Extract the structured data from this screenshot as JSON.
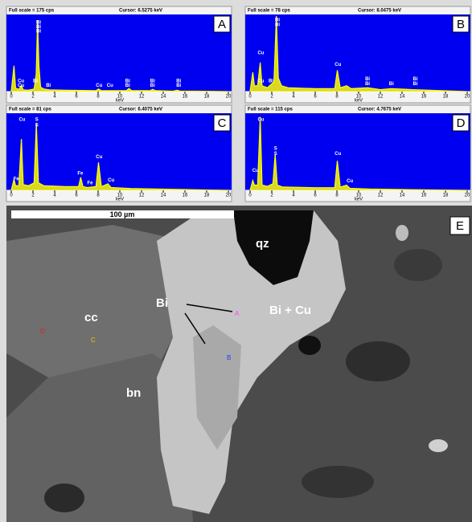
{
  "chart_data": [
    {
      "type": "line",
      "title": "Full scale = 175 cps",
      "subtitle": "Cursor: 6.5275 keV",
      "panel": "A",
      "x_label": "keV",
      "xlim": [
        0,
        20
      ],
      "xticks": [
        0,
        2,
        4,
        6,
        8,
        10,
        12,
        14,
        16,
        18,
        20
      ],
      "ylim": [
        0,
        175
      ],
      "color": "#ffff00",
      "background": "#0000f0",
      "x": [
        0,
        0.25,
        0.4,
        0.7,
        0.93,
        1.1,
        1.5,
        2.1,
        2.3,
        2.42,
        2.55,
        2.7,
        3.0,
        3.5,
        5,
        7.8,
        8.04,
        8.3,
        9,
        10.6,
        10.84,
        11.1,
        12.8,
        13.02,
        13.3,
        14.9,
        15.25,
        15.6,
        17,
        20
      ],
      "values": [
        0,
        60,
        8,
        5,
        14,
        4,
        3,
        6,
        40,
        165,
        60,
        10,
        6,
        4,
        3,
        2,
        6,
        2,
        2,
        2,
        7,
        2,
        2,
        5,
        2,
        1,
        3,
        1,
        1,
        0
      ],
      "annotations": [
        {
          "text": "Bi",
          "x": 2.3,
          "y": 160
        },
        {
          "text": "Bi",
          "x": 2.3,
          "y": 150
        },
        {
          "text": "Bi",
          "x": 2.3,
          "y": 140
        },
        {
          "text": "Cu",
          "x": 0.6,
          "y": 24
        },
        {
          "text": "Cu",
          "x": 0.6,
          "y": 14
        },
        {
          "text": "Bi",
          "x": 2.0,
          "y": 24
        },
        {
          "text": "Bi",
          "x": 3.2,
          "y": 14
        },
        {
          "text": "Cu",
          "x": 7.8,
          "y": 14
        },
        {
          "text": "Cu",
          "x": 8.8,
          "y": 14
        },
        {
          "text": "Bi",
          "x": 10.5,
          "y": 24
        },
        {
          "text": "Bi",
          "x": 10.5,
          "y": 14
        },
        {
          "text": "Bi",
          "x": 12.8,
          "y": 24
        },
        {
          "text": "Bi",
          "x": 12.8,
          "y": 14
        },
        {
          "text": "Bi",
          "x": 15.2,
          "y": 24
        },
        {
          "text": "Bi",
          "x": 15.2,
          "y": 14
        }
      ]
    },
    {
      "type": "line",
      "title": "Full scale = 78 cps",
      "subtitle": "Cursor: 8.0475 keV",
      "panel": "B",
      "x_label": "keV",
      "xlim": [
        0,
        20
      ],
      "xticks": [
        0,
        2,
        4,
        6,
        8,
        10,
        12,
        14,
        16,
        18,
        20
      ],
      "ylim": [
        0,
        78
      ],
      "color": "#ffff00",
      "background": "#0000f0",
      "x": [
        0,
        0.25,
        0.4,
        0.7,
        0.93,
        1.1,
        1.6,
        2.2,
        2.42,
        2.6,
        2.9,
        3.5,
        6,
        7.8,
        8.04,
        8.3,
        8.9,
        9.3,
        10.84,
        12,
        13.02,
        15,
        20
      ],
      "values": [
        0,
        20,
        6,
        6,
        30,
        6,
        4,
        10,
        78,
        14,
        6,
        4,
        3,
        3,
        22,
        4,
        6,
        3,
        4,
        2,
        3,
        2,
        0
      ],
      "annotations": [
        {
          "text": "Bi",
          "x": 2.3,
          "y": 74
        },
        {
          "text": "Bi",
          "x": 2.3,
          "y": 69
        },
        {
          "text": "Cu",
          "x": 0.7,
          "y": 40
        },
        {
          "text": "Cu",
          "x": 0.7,
          "y": 11
        },
        {
          "text": "Bi",
          "x": 1.7,
          "y": 11
        },
        {
          "text": "Cu",
          "x": 7.8,
          "y": 28
        },
        {
          "text": "Bi",
          "x": 10.6,
          "y": 13
        },
        {
          "text": "Bi",
          "x": 10.6,
          "y": 8
        },
        {
          "text": "Bi",
          "x": 12.8,
          "y": 8
        },
        {
          "text": "Bi",
          "x": 15,
          "y": 13
        },
        {
          "text": "Bi",
          "x": 15,
          "y": 8
        }
      ]
    },
    {
      "type": "line",
      "title": "Full scale = 81 cps",
      "subtitle": "Cursor: 6.4075 keV",
      "panel": "C",
      "x_label": "keV",
      "xlim": [
        0,
        20
      ],
      "xticks": [
        0,
        2,
        4,
        6,
        8,
        10,
        12,
        14,
        16,
        18,
        20
      ],
      "ylim": [
        0,
        81
      ],
      "color": "#ffff00",
      "background": "#0000f0",
      "x": [
        0,
        0.25,
        0.4,
        0.7,
        0.93,
        1.1,
        1.6,
        2.1,
        2.31,
        2.5,
        3,
        5,
        6.2,
        6.4,
        6.6,
        7,
        7.8,
        8.04,
        8.3,
        8.9,
        9.2,
        11,
        20
      ],
      "values": [
        0,
        12,
        5,
        5,
        55,
        6,
        5,
        8,
        72,
        8,
        5,
        4,
        4,
        14,
        4,
        3,
        4,
        30,
        4,
        7,
        3,
        2,
        0
      ],
      "annotations": [
        {
          "text": "Cu",
          "x": 0.7,
          "y": 76
        },
        {
          "text": "S",
          "x": 2.2,
          "y": 76
        },
        {
          "text": "S",
          "x": 2.2,
          "y": 70
        },
        {
          "text": "Fe",
          "x": 0.2,
          "y": 12
        },
        {
          "text": "Fe",
          "x": 6.1,
          "y": 18
        },
        {
          "text": "Fe",
          "x": 7.0,
          "y": 8
        },
        {
          "text": "Cu",
          "x": 7.8,
          "y": 36
        },
        {
          "text": "Cu",
          "x": 8.9,
          "y": 11
        }
      ]
    },
    {
      "type": "line",
      "title": "Full scale = 115 cps",
      "subtitle": "Cursor: 4.7675 keV",
      "panel": "D",
      "x_label": "keV",
      "xlim": [
        0,
        20
      ],
      "xticks": [
        0,
        2,
        4,
        6,
        8,
        10,
        12,
        14,
        16,
        18,
        20
      ],
      "ylim": [
        0,
        115
      ],
      "color": "#ffff00",
      "background": "#0000f0",
      "x": [
        0,
        0.25,
        0.4,
        0.7,
        0.93,
        1.1,
        1.6,
        2.1,
        2.31,
        2.5,
        3,
        6,
        7.8,
        8.04,
        8.3,
        8.9,
        9.2,
        11,
        20
      ],
      "values": [
        0,
        15,
        8,
        8,
        112,
        8,
        6,
        10,
        55,
        8,
        5,
        4,
        4,
        45,
        5,
        8,
        3,
        2,
        0
      ],
      "annotations": [
        {
          "text": "Cu",
          "x": 0.7,
          "y": 108
        },
        {
          "text": "S",
          "x": 2.2,
          "y": 64
        },
        {
          "text": "S",
          "x": 2.2,
          "y": 56
        },
        {
          "text": "Cu",
          "x": 7.8,
          "y": 56
        },
        {
          "text": "Cu",
          "x": 0.2,
          "y": 30
        },
        {
          "text": "Cu",
          "x": 8.9,
          "y": 14
        }
      ]
    }
  ],
  "image": {
    "panel": "E",
    "scale_bar": "100 µm",
    "labels": [
      "qz",
      "Bi",
      "cc",
      "Bi + Cu",
      "bn"
    ],
    "points": [
      "A",
      "B",
      "C",
      "D"
    ]
  }
}
